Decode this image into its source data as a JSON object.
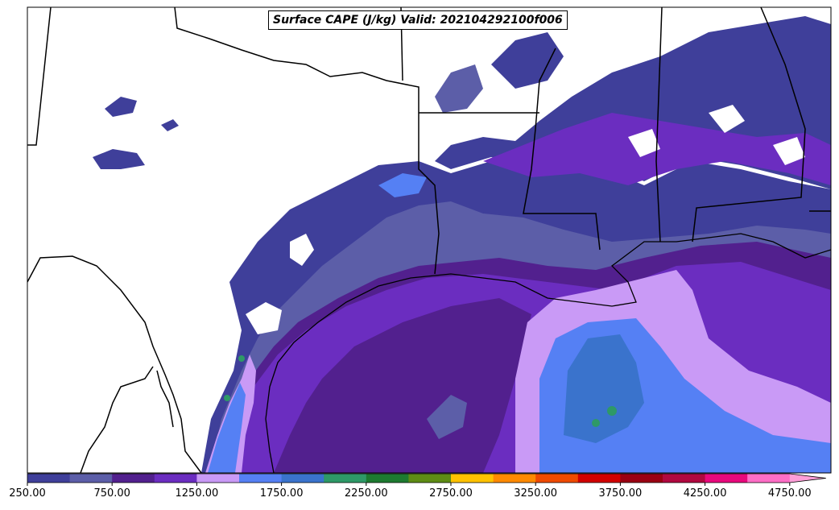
{
  "title": "Surface CAPE (J/kg) Valid: 202104292100f006",
  "colorbar": {
    "colors": [
      "#3f3f9a",
      "#5c5ea8",
      "#52208e",
      "#6b2dc0",
      "#c99af6",
      "#5580f4",
      "#3a73cc",
      "#2e9967",
      "#1d7a30",
      "#5e8c15",
      "#ffc200",
      "#ff8a00",
      "#ef4a00",
      "#d10000",
      "#9a0012",
      "#b0083f",
      "#e8087c",
      "#ff6ec6"
    ],
    "extend_color": "#ff9ed8",
    "tick_labels": [
      "250.00",
      "750.00",
      "1250.00",
      "1750.00",
      "2250.00",
      "2750.00",
      "3250.00",
      "3750.00",
      "4250.00",
      "4750.00"
    ]
  },
  "legend_levels_jkg": [
    250,
    500,
    750,
    1000,
    1250,
    1500,
    1750,
    2000,
    2250,
    2500,
    2750,
    3000,
    3250,
    3500,
    3750,
    4000,
    4250,
    4500,
    4750
  ]
}
